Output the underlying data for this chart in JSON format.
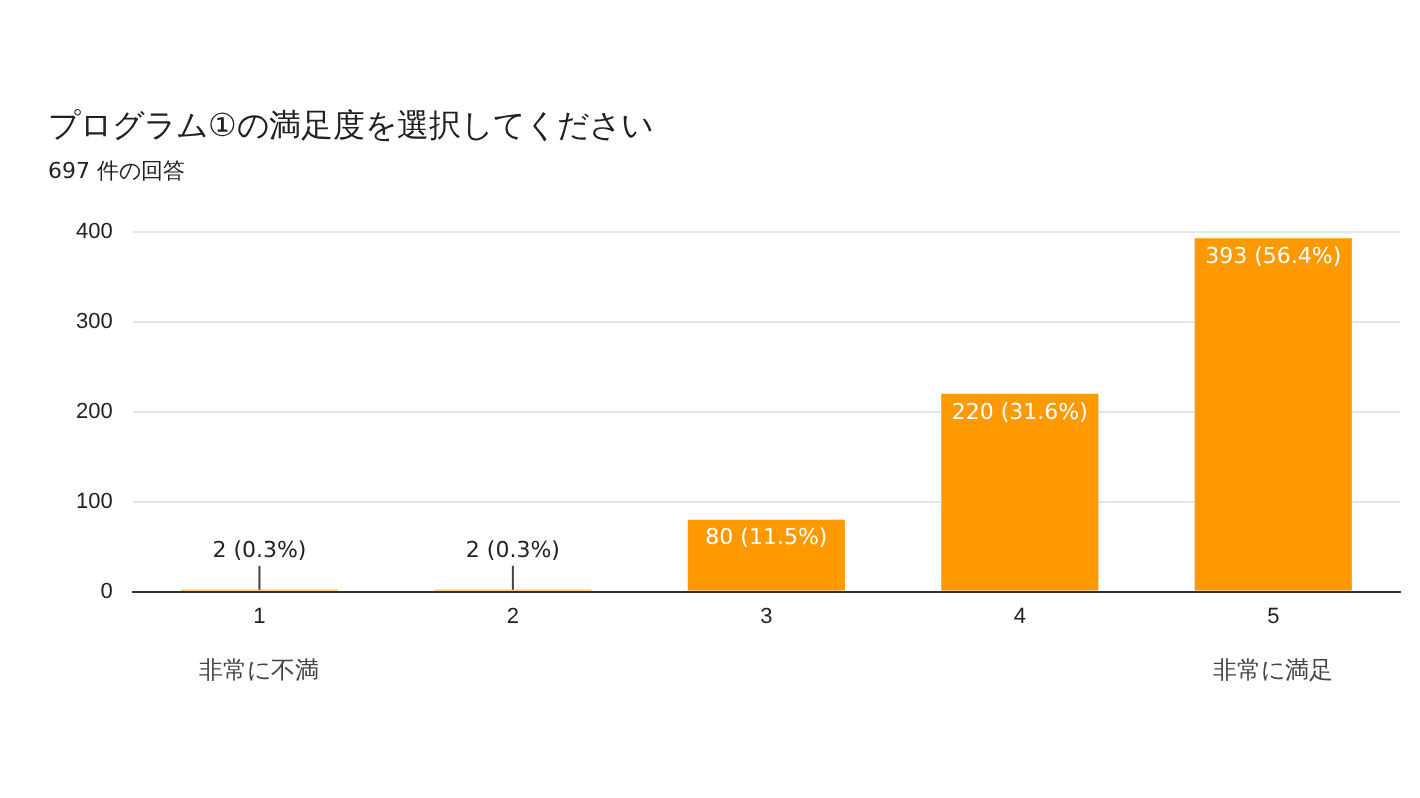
{
  "chart_data": {
    "type": "bar",
    "title": "プログラム①の満足度を選択してください",
    "subtitle": "697 件の回答",
    "categories": [
      "1",
      "2",
      "3",
      "4",
      "5"
    ],
    "values": [
      2,
      2,
      80,
      220,
      393
    ],
    "value_labels": [
      "2 (0.3%)",
      "2 (0.3%)",
      "80 (11.5%)",
      "220 (31.6%)",
      "393 (56.4%)"
    ],
    "color": "#ff9900",
    "ylim": [
      0,
      400
    ],
    "yticks": [
      0,
      100,
      200,
      300,
      400
    ],
    "grid": "y",
    "legend": false,
    "annotations": [
      "非常に不満",
      "非常に満足"
    ]
  }
}
